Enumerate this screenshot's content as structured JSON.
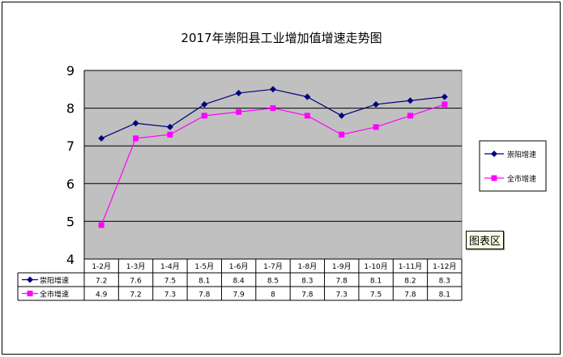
{
  "chart_data": {
    "type": "line",
    "title": "2017年崇阳县工业增加值增速走势图",
    "categories": [
      "1-2月",
      "1-3月",
      "1-4月",
      "1-5月",
      "1-6月",
      "1-7月",
      "1-8月",
      "1-9月",
      "1-10月",
      "1-11月",
      "1-12月"
    ],
    "series": [
      {
        "name": "崇阳增速",
        "color": "#000080",
        "marker": "diamond",
        "values": [
          7.2,
          7.6,
          7.5,
          8.1,
          8.4,
          8.5,
          8.3,
          7.8,
          8.1,
          8.2,
          8.3
        ],
        "labels": [
          "7.2",
          "7.6",
          "7.5",
          "8.1",
          "8.4",
          "8.5",
          "8.3",
          "7.8",
          "8.1",
          "8.2",
          "8.3"
        ]
      },
      {
        "name": "全市增速",
        "color": "#ff00ff",
        "marker": "square",
        "values": [
          4.9,
          7.2,
          7.3,
          7.8,
          7.9,
          8.0,
          7.8,
          7.3,
          7.5,
          7.8,
          8.1
        ],
        "labels": [
          "4.9",
          "7.2",
          "7.3",
          "7.8",
          "7.9",
          "8",
          "7.8",
          "7.3",
          "7.5",
          "7.8",
          "8.1"
        ]
      }
    ],
    "ylim": [
      4,
      9
    ],
    "yticks": [
      "4",
      "5",
      "6",
      "7",
      "8",
      "9"
    ],
    "grid": true,
    "plot_background": "#c0c0c0",
    "legend": "right",
    "data_table": true
  },
  "tooltip": "图表区"
}
